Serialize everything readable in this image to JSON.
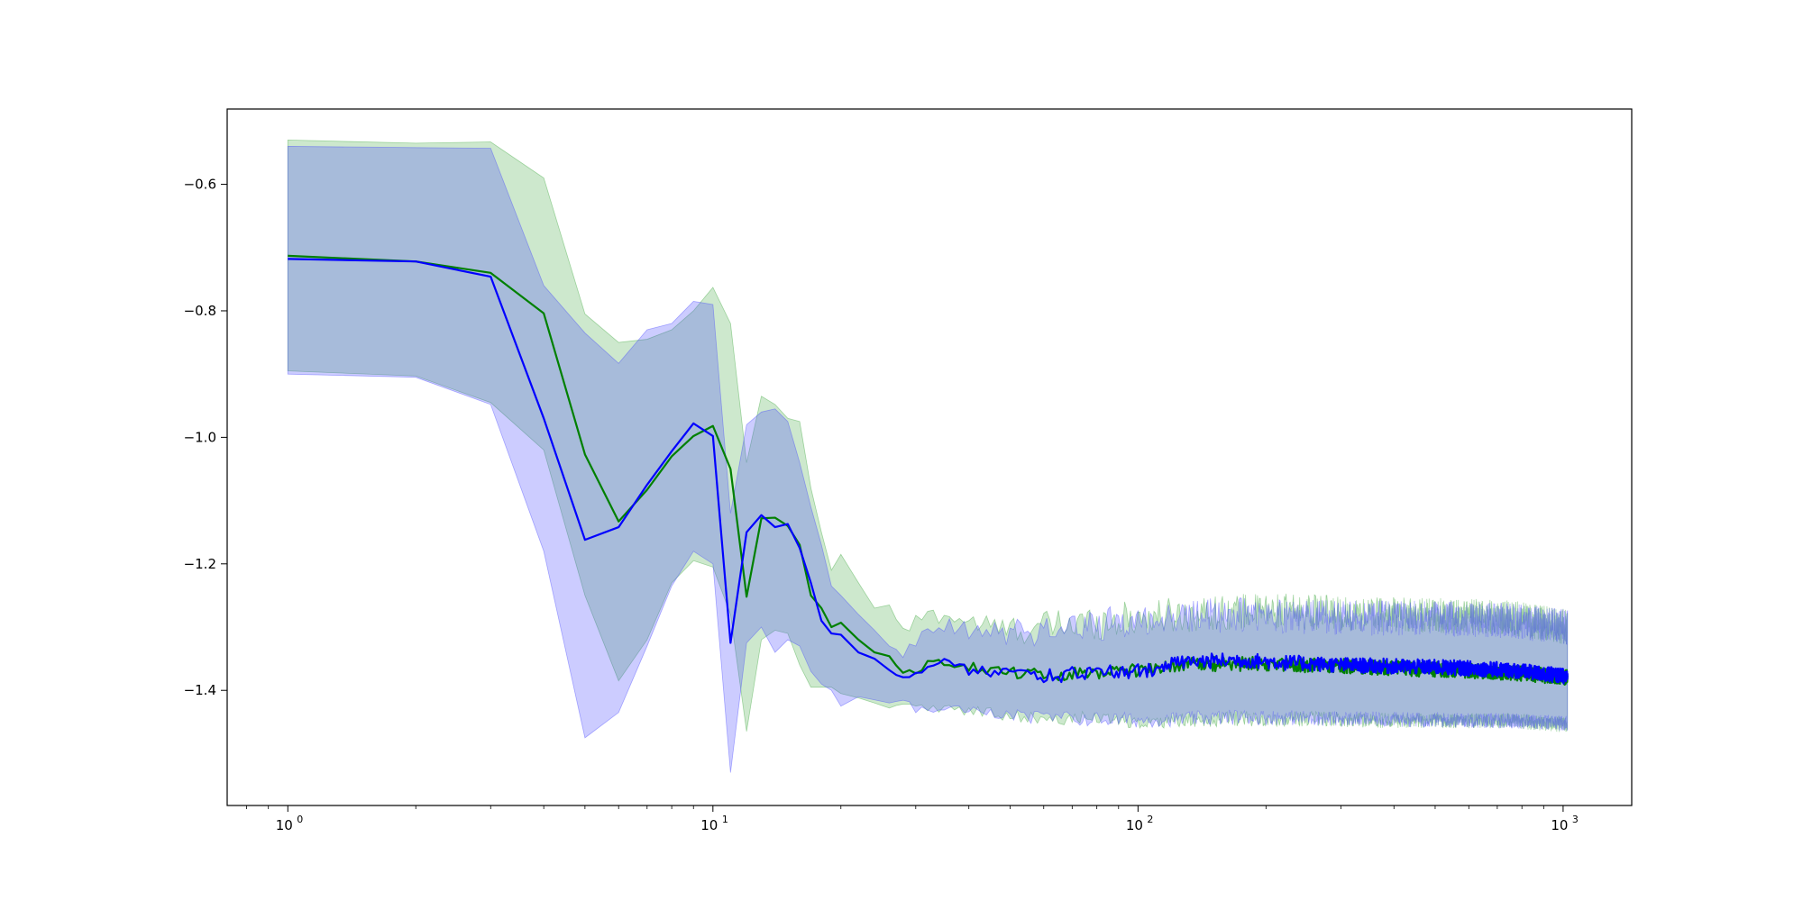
{
  "chart_data": {
    "type": "line",
    "title": "",
    "xlabel": "",
    "ylabel": "",
    "x_scale": "log",
    "xlim": [
      0.72,
      1450
    ],
    "ylim": [
      -1.582,
      -0.481
    ],
    "grid": false,
    "legend": "none",
    "x_ticks": [
      {
        "value": 1,
        "base": "10",
        "exp": "0"
      },
      {
        "value": 10,
        "base": "10",
        "exp": "1"
      },
      {
        "value": 100,
        "base": "10",
        "exp": "2"
      },
      {
        "value": 1000,
        "base": "10",
        "exp": "3"
      }
    ],
    "y_ticks": [
      {
        "value": -0.6,
        "label": "−0.6"
      },
      {
        "value": -0.8,
        "label": "−0.8"
      },
      {
        "value": -1.0,
        "label": "−1.0"
      },
      {
        "value": -1.2,
        "label": "−1.2"
      },
      {
        "value": -1.4,
        "label": "−1.4"
      }
    ],
    "series": [
      {
        "color": "#008000",
        "band_color": "#2ca02c",
        "band_opacity": 0.24,
        "line": [
          [
            1,
            -0.713
          ],
          [
            2,
            -0.722
          ],
          [
            3,
            -0.74
          ],
          [
            4,
            -0.804
          ],
          [
            5,
            -1.027
          ],
          [
            6,
            -1.133
          ],
          [
            7,
            -1.083
          ],
          [
            8,
            -1.03
          ],
          [
            9,
            -0.998
          ],
          [
            10,
            -0.982
          ],
          [
            11,
            -1.05
          ],
          [
            12,
            -1.252
          ],
          [
            13,
            -1.128
          ],
          [
            14,
            -1.127
          ],
          [
            15,
            -1.14
          ],
          [
            16,
            -1.17
          ],
          [
            17,
            -1.25
          ],
          [
            18,
            -1.27
          ],
          [
            19,
            -1.3
          ],
          [
            20,
            -1.293
          ],
          [
            22,
            -1.32
          ],
          [
            24,
            -1.34
          ],
          [
            26,
            -1.346
          ],
          [
            28,
            -1.375
          ],
          [
            30,
            -1.37
          ],
          [
            33,
            -1.352
          ],
          [
            36,
            -1.355
          ],
          [
            40,
            -1.362
          ],
          [
            45,
            -1.368
          ],
          [
            50,
            -1.372
          ],
          [
            60,
            -1.375
          ],
          [
            70,
            -1.372
          ],
          [
            85,
            -1.37
          ],
          [
            100,
            -1.368
          ],
          [
            130,
            -1.36
          ],
          [
            170,
            -1.358
          ],
          [
            220,
            -1.36
          ],
          [
            300,
            -1.362
          ],
          [
            400,
            -1.365
          ],
          [
            550,
            -1.368
          ],
          [
            750,
            -1.372
          ],
          [
            1024,
            -1.38
          ]
        ],
        "upper": [
          [
            1,
            -0.53
          ],
          [
            2,
            -0.535
          ],
          [
            3,
            -0.533
          ],
          [
            4,
            -0.59
          ],
          [
            5,
            -0.805
          ],
          [
            6,
            -0.85
          ],
          [
            7,
            -0.845
          ],
          [
            8,
            -0.83
          ],
          [
            9,
            -0.8
          ],
          [
            10,
            -0.763
          ],
          [
            11,
            -0.82
          ],
          [
            12,
            -1.04
          ],
          [
            13,
            -0.935
          ],
          [
            14,
            -0.948
          ],
          [
            15,
            -0.97
          ],
          [
            16,
            -0.975
          ],
          [
            17,
            -1.08
          ],
          [
            18,
            -1.15
          ],
          [
            19,
            -1.21
          ],
          [
            20,
            -1.185
          ],
          [
            22,
            -1.23
          ],
          [
            24,
            -1.27
          ],
          [
            26,
            -1.265
          ],
          [
            28,
            -1.31
          ],
          [
            30,
            -1.29
          ],
          [
            33,
            -1.28
          ],
          [
            36,
            -1.282
          ],
          [
            40,
            -1.29
          ],
          [
            45,
            -1.3
          ],
          [
            50,
            -1.305
          ],
          [
            60,
            -1.3
          ],
          [
            70,
            -1.295
          ],
          [
            85,
            -1.29
          ],
          [
            100,
            -1.285
          ],
          [
            130,
            -1.28
          ],
          [
            170,
            -1.275
          ],
          [
            220,
            -1.275
          ],
          [
            300,
            -1.278
          ],
          [
            400,
            -1.28
          ],
          [
            550,
            -1.282
          ],
          [
            750,
            -1.285
          ],
          [
            1024,
            -1.3
          ]
        ],
        "lower": [
          [
            1,
            -0.895
          ],
          [
            2,
            -0.903
          ],
          [
            3,
            -0.945
          ],
          [
            4,
            -1.02
          ],
          [
            5,
            -1.25
          ],
          [
            6,
            -1.385
          ],
          [
            7,
            -1.32
          ],
          [
            8,
            -1.23
          ],
          [
            9,
            -1.195
          ],
          [
            10,
            -1.205
          ],
          [
            11,
            -1.28
          ],
          [
            12,
            -1.465
          ],
          [
            13,
            -1.32
          ],
          [
            14,
            -1.305
          ],
          [
            15,
            -1.31
          ],
          [
            16,
            -1.36
          ],
          [
            17,
            -1.395
          ],
          [
            18,
            -1.395
          ],
          [
            19,
            -1.395
          ],
          [
            20,
            -1.405
          ],
          [
            22,
            -1.412
          ],
          [
            24,
            -1.42
          ],
          [
            26,
            -1.428
          ],
          [
            28,
            -1.42
          ],
          [
            30,
            -1.425
          ],
          [
            33,
            -1.43
          ],
          [
            36,
            -1.43
          ],
          [
            40,
            -1.432
          ],
          [
            45,
            -1.436
          ],
          [
            50,
            -1.44
          ],
          [
            60,
            -1.442
          ],
          [
            70,
            -1.445
          ],
          [
            85,
            -1.445
          ],
          [
            100,
            -1.448
          ],
          [
            130,
            -1.448
          ],
          [
            170,
            -1.445
          ],
          [
            220,
            -1.445
          ],
          [
            300,
            -1.446
          ],
          [
            400,
            -1.448
          ],
          [
            550,
            -1.448
          ],
          [
            750,
            -1.448
          ],
          [
            1024,
            -1.455
          ]
        ]
      },
      {
        "color": "#0000ff",
        "band_color": "#4444ff",
        "band_opacity": 0.27,
        "line": [
          [
            1,
            -0.718
          ],
          [
            2,
            -0.722
          ],
          [
            3,
            -0.746
          ],
          [
            4,
            -0.97
          ],
          [
            5,
            -1.162
          ],
          [
            6,
            -1.142
          ],
          [
            7,
            -1.075
          ],
          [
            8,
            -1.022
          ],
          [
            9,
            -0.978
          ],
          [
            10,
            -0.998
          ],
          [
            11,
            -1.325
          ],
          [
            12,
            -1.15
          ],
          [
            13,
            -1.123
          ],
          [
            14,
            -1.142
          ],
          [
            15,
            -1.137
          ],
          [
            16,
            -1.175
          ],
          [
            17,
            -1.23
          ],
          [
            18,
            -1.29
          ],
          [
            19,
            -1.31
          ],
          [
            20,
            -1.312
          ],
          [
            22,
            -1.34
          ],
          [
            24,
            -1.35
          ],
          [
            26,
            -1.368
          ],
          [
            28,
            -1.383
          ],
          [
            30,
            -1.372
          ],
          [
            33,
            -1.358
          ],
          [
            36,
            -1.352
          ],
          [
            40,
            -1.368
          ],
          [
            45,
            -1.372
          ],
          [
            50,
            -1.375
          ],
          [
            60,
            -1.377
          ],
          [
            70,
            -1.374
          ],
          [
            85,
            -1.372
          ],
          [
            100,
            -1.37
          ],
          [
            130,
            -1.355
          ],
          [
            170,
            -1.352
          ],
          [
            220,
            -1.356
          ],
          [
            300,
            -1.36
          ],
          [
            400,
            -1.362
          ],
          [
            550,
            -1.364
          ],
          [
            750,
            -1.368
          ],
          [
            1024,
            -1.378
          ]
        ],
        "upper": [
          [
            1,
            -0.54
          ],
          [
            2,
            -0.542
          ],
          [
            3,
            -0.543
          ],
          [
            4,
            -0.76
          ],
          [
            5,
            -0.835
          ],
          [
            6,
            -0.883
          ],
          [
            7,
            -0.83
          ],
          [
            8,
            -0.82
          ],
          [
            9,
            -0.785
          ],
          [
            10,
            -0.79
          ],
          [
            11,
            -1.12
          ],
          [
            12,
            -0.98
          ],
          [
            13,
            -0.96
          ],
          [
            14,
            -0.955
          ],
          [
            15,
            -0.975
          ],
          [
            16,
            -1.04
          ],
          [
            17,
            -1.11
          ],
          [
            18,
            -1.17
          ],
          [
            19,
            -1.235
          ],
          [
            20,
            -1.25
          ],
          [
            22,
            -1.28
          ],
          [
            24,
            -1.305
          ],
          [
            26,
            -1.33
          ],
          [
            28,
            -1.34
          ],
          [
            30,
            -1.325
          ],
          [
            33,
            -1.31
          ],
          [
            36,
            -1.3
          ],
          [
            40,
            -1.31
          ],
          [
            45,
            -1.31
          ],
          [
            50,
            -1.308
          ],
          [
            60,
            -1.305
          ],
          [
            70,
            -1.3
          ],
          [
            85,
            -1.295
          ],
          [
            100,
            -1.29
          ],
          [
            130,
            -1.283
          ],
          [
            170,
            -1.28
          ],
          [
            220,
            -1.282
          ],
          [
            300,
            -1.285
          ],
          [
            400,
            -1.286
          ],
          [
            550,
            -1.287
          ],
          [
            750,
            -1.29
          ],
          [
            1024,
            -1.3
          ]
        ],
        "lower": [
          [
            1,
            -0.9
          ],
          [
            2,
            -0.905
          ],
          [
            3,
            -0.948
          ],
          [
            4,
            -1.18
          ],
          [
            5,
            -1.475
          ],
          [
            6,
            -1.435
          ],
          [
            7,
            -1.33
          ],
          [
            8,
            -1.235
          ],
          [
            9,
            -1.18
          ],
          [
            10,
            -1.2
          ],
          [
            11,
            -1.53
          ],
          [
            12,
            -1.325
          ],
          [
            13,
            -1.3
          ],
          [
            14,
            -1.34
          ],
          [
            15,
            -1.32
          ],
          [
            16,
            -1.33
          ],
          [
            17,
            -1.37
          ],
          [
            18,
            -1.39
          ],
          [
            19,
            -1.4
          ],
          [
            20,
            -1.425
          ],
          [
            22,
            -1.41
          ],
          [
            24,
            -1.415
          ],
          [
            26,
            -1.42
          ],
          [
            28,
            -1.415
          ],
          [
            30,
            -1.43
          ],
          [
            33,
            -1.432
          ],
          [
            36,
            -1.428
          ],
          [
            40,
            -1.43
          ],
          [
            45,
            -1.437
          ],
          [
            50,
            -1.44
          ],
          [
            60,
            -1.443
          ],
          [
            70,
            -1.445
          ],
          [
            85,
            -1.446
          ],
          [
            100,
            -1.447
          ],
          [
            130,
            -1.445
          ],
          [
            170,
            -1.442
          ],
          [
            220,
            -1.443
          ],
          [
            300,
            -1.445
          ],
          [
            400,
            -1.446
          ],
          [
            550,
            -1.447
          ],
          [
            750,
            -1.448
          ],
          [
            1024,
            -1.452
          ]
        ]
      }
    ]
  }
}
